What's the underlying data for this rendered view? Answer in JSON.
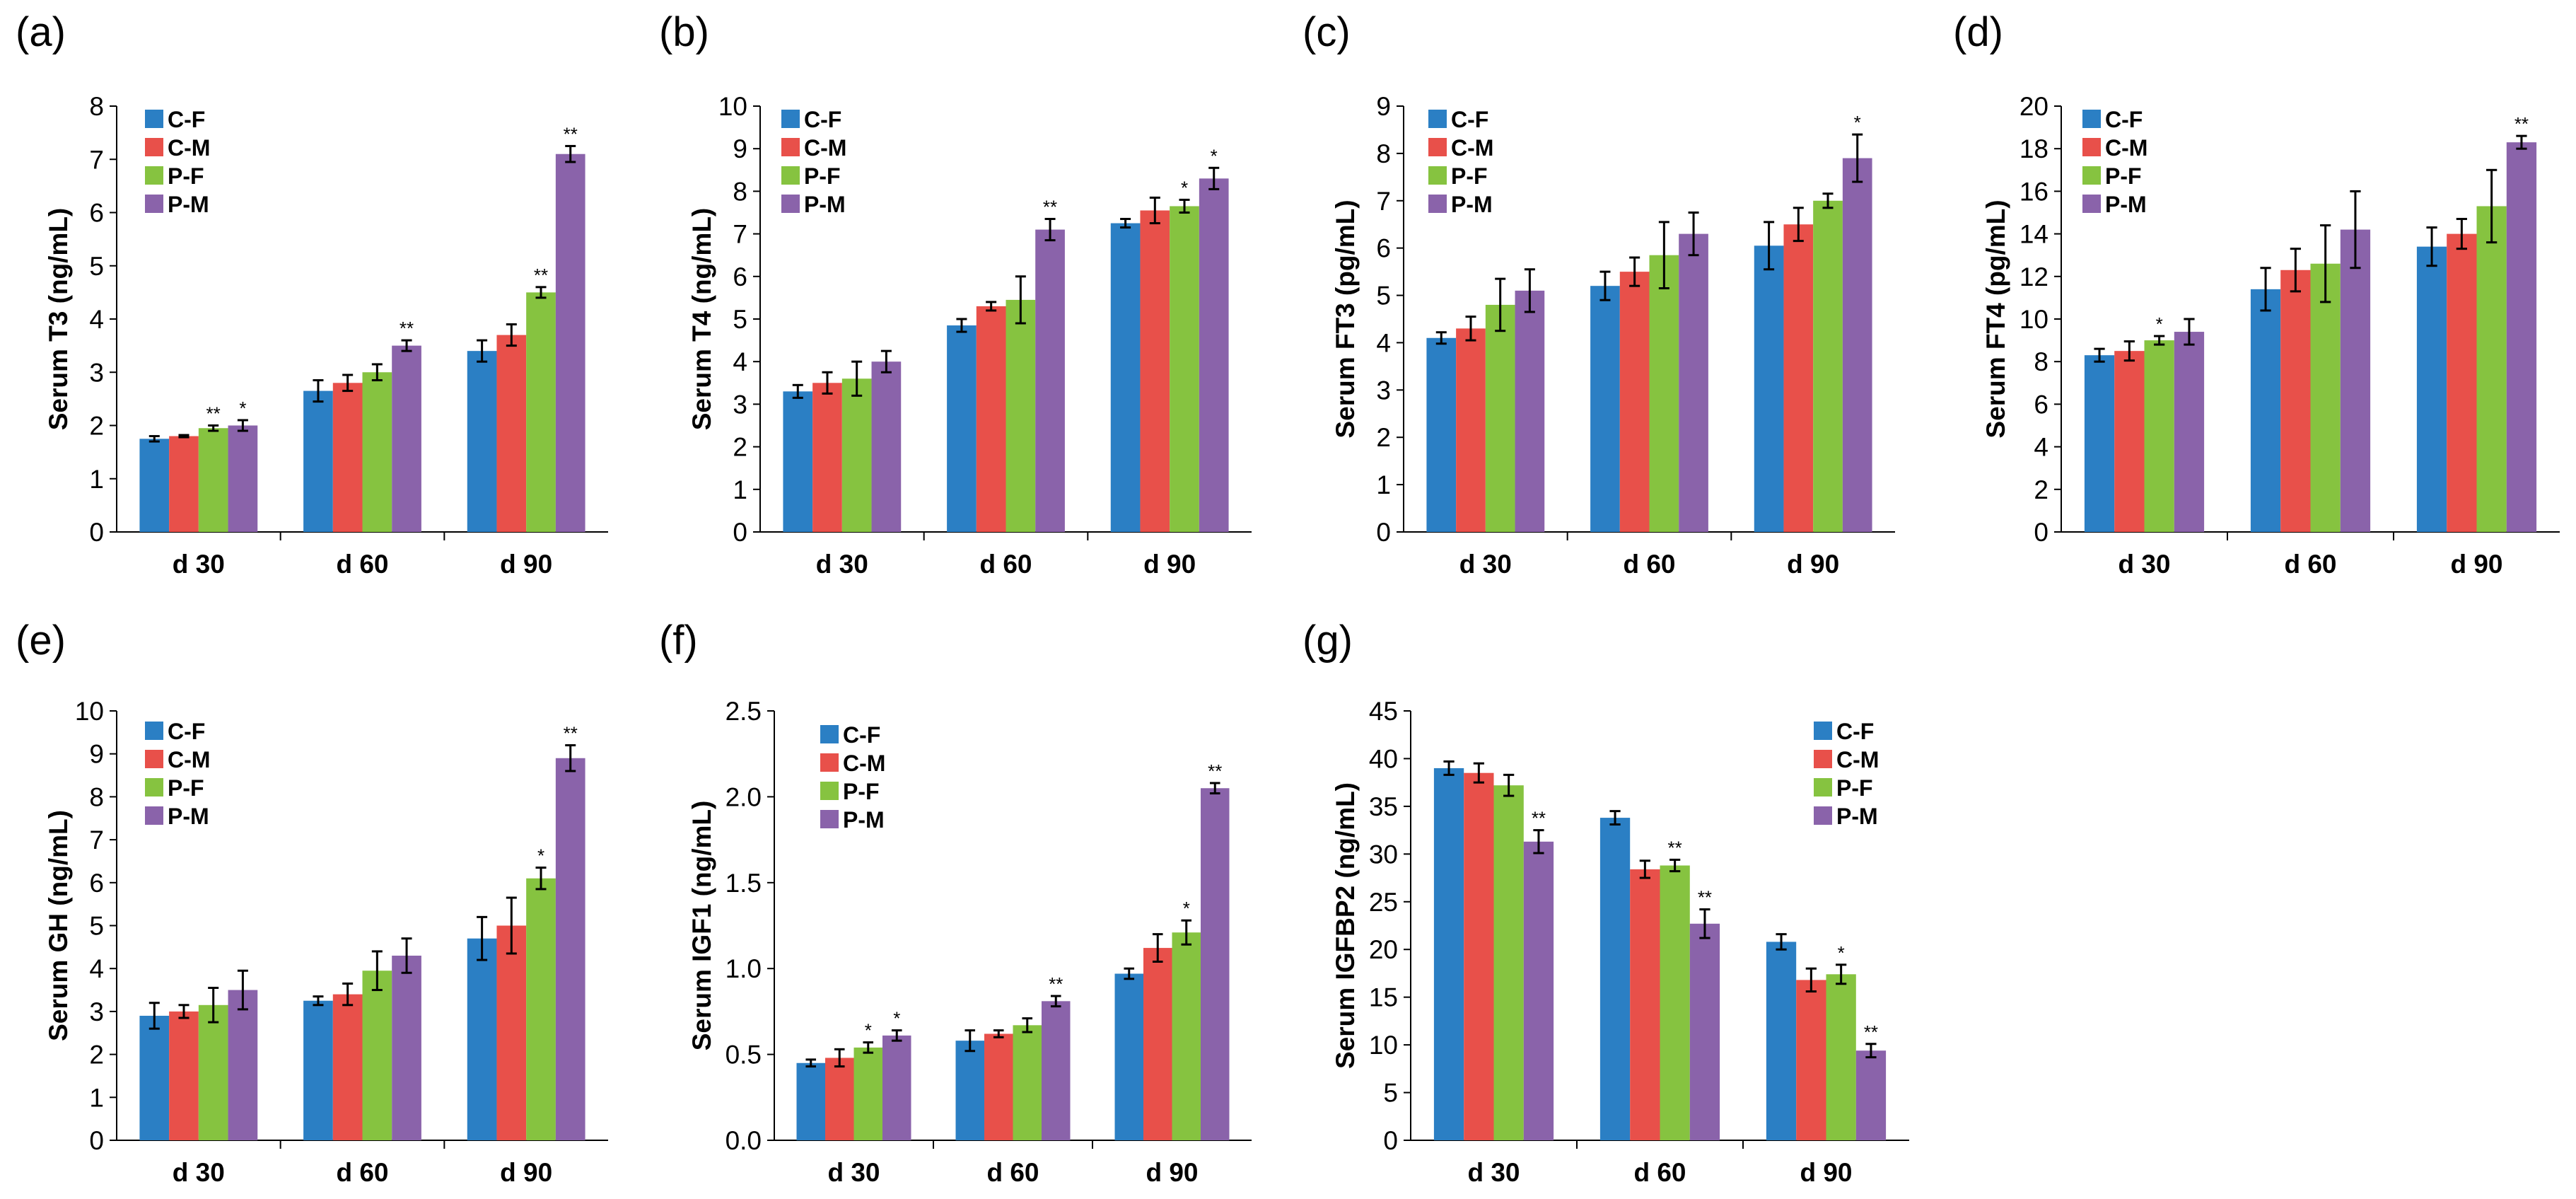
{
  "colors": {
    "C-F": "#2b7fc4",
    "C-M": "#e8504a",
    "P-F": "#86c340",
    "P-M": "#8a63aa"
  },
  "chart_data": [
    {
      "id": "a",
      "panel_label": "(a)",
      "type": "bar",
      "ylabel": "Serum T3 (ng/mL)",
      "ylim": [
        0,
        8
      ],
      "yticks": [
        "0",
        "1",
        "2",
        "3",
        "4",
        "5",
        "6",
        "7",
        "8"
      ],
      "categories": [
        "d 30",
        "d 60",
        "d 90"
      ],
      "legend": [
        "C-F",
        "C-M",
        "P-F",
        "P-M"
      ],
      "series": [
        {
          "name": "C-F",
          "values": [
            1.75,
            2.65,
            3.4
          ],
          "errors": [
            0.05,
            0.2,
            0.2
          ],
          "sig": [
            "",
            "",
            ""
          ]
        },
        {
          "name": "C-M",
          "values": [
            1.8,
            2.8,
            3.7
          ],
          "errors": [
            0.02,
            0.15,
            0.2
          ],
          "sig": [
            "",
            "",
            ""
          ]
        },
        {
          "name": "P-F",
          "values": [
            1.95,
            3.0,
            4.5
          ],
          "errors": [
            0.05,
            0.15,
            0.1
          ],
          "sig": [
            "**",
            "",
            "**"
          ]
        },
        {
          "name": "P-M",
          "values": [
            2.0,
            3.5,
            7.1
          ],
          "errors": [
            0.1,
            0.1,
            0.15
          ],
          "sig": [
            "*",
            "**",
            "**"
          ]
        }
      ]
    },
    {
      "id": "b",
      "panel_label": "(b)",
      "type": "bar",
      "ylabel": "Serum T4 (ng/mL)",
      "ylim": [
        0,
        10
      ],
      "yticks": [
        "0",
        "1",
        "2",
        "3",
        "4",
        "5",
        "6",
        "7",
        "8",
        "9",
        "10"
      ],
      "categories": [
        "d 30",
        "d 60",
        "d 90"
      ],
      "legend": [
        "C-F",
        "C-M",
        "P-F",
        "P-M"
      ],
      "series": [
        {
          "name": "C-F",
          "values": [
            3.3,
            4.85,
            7.25
          ],
          "errors": [
            0.15,
            0.15,
            0.1
          ],
          "sig": [
            "",
            "",
            ""
          ]
        },
        {
          "name": "C-M",
          "values": [
            3.5,
            5.3,
            7.55
          ],
          "errors": [
            0.25,
            0.1,
            0.3
          ],
          "sig": [
            "",
            "",
            ""
          ]
        },
        {
          "name": "P-F",
          "values": [
            3.6,
            5.45,
            7.65
          ],
          "errors": [
            0.4,
            0.55,
            0.15
          ],
          "sig": [
            "",
            "",
            "*"
          ]
        },
        {
          "name": "P-M",
          "values": [
            4.0,
            7.1,
            8.3
          ],
          "errors": [
            0.25,
            0.25,
            0.25
          ],
          "sig": [
            "",
            "**",
            "*"
          ]
        }
      ]
    },
    {
      "id": "c",
      "panel_label": "(c)",
      "type": "bar",
      "ylabel": "Serum FT3 (pg/mL)",
      "ylim": [
        0,
        9
      ],
      "yticks": [
        "0",
        "1",
        "2",
        "3",
        "4",
        "5",
        "6",
        "7",
        "8",
        "9"
      ],
      "categories": [
        "d 30",
        "d 60",
        "d 90"
      ],
      "legend": [
        "C-F",
        "C-M",
        "P-F",
        "P-M"
      ],
      "series": [
        {
          "name": "C-F",
          "values": [
            4.1,
            5.2,
            6.05
          ],
          "errors": [
            0.12,
            0.3,
            0.5
          ],
          "sig": [
            "",
            "",
            ""
          ]
        },
        {
          "name": "C-M",
          "values": [
            4.3,
            5.5,
            6.5
          ],
          "errors": [
            0.25,
            0.3,
            0.35
          ],
          "sig": [
            "",
            "",
            ""
          ]
        },
        {
          "name": "P-F",
          "values": [
            4.8,
            5.85,
            7.0
          ],
          "errors": [
            0.55,
            0.7,
            0.15
          ],
          "sig": [
            "",
            "",
            ""
          ]
        },
        {
          "name": "P-M",
          "values": [
            5.1,
            6.3,
            7.9
          ],
          "errors": [
            0.45,
            0.45,
            0.5
          ],
          "sig": [
            "",
            "",
            "*"
          ]
        }
      ]
    },
    {
      "id": "d",
      "panel_label": "(d)",
      "type": "bar",
      "ylabel": "Serum FT4 (pg/mL)",
      "ylim": [
        0,
        20
      ],
      "yticks": [
        "0",
        "2",
        "4",
        "6",
        "8",
        "10",
        "12",
        "14",
        "16",
        "18",
        "20"
      ],
      "categories": [
        "d 30",
        "d 60",
        "d 90"
      ],
      "legend": [
        "C-F",
        "C-M",
        "P-F",
        "P-M"
      ],
      "series": [
        {
          "name": "C-F",
          "values": [
            8.3,
            11.4,
            13.4
          ],
          "errors": [
            0.3,
            1.0,
            0.9
          ],
          "sig": [
            "",
            "",
            ""
          ]
        },
        {
          "name": "C-M",
          "values": [
            8.5,
            12.3,
            14.0
          ],
          "errors": [
            0.45,
            1.0,
            0.7
          ],
          "sig": [
            "",
            "",
            ""
          ]
        },
        {
          "name": "P-F",
          "values": [
            9.0,
            12.6,
            15.3
          ],
          "errors": [
            0.2,
            1.8,
            1.7
          ],
          "sig": [
            "*",
            "",
            ""
          ]
        },
        {
          "name": "P-M",
          "values": [
            9.4,
            14.2,
            18.3
          ],
          "errors": [
            0.6,
            1.8,
            0.3
          ],
          "sig": [
            "",
            "",
            "**"
          ]
        }
      ]
    },
    {
      "id": "e",
      "panel_label": "(e)",
      "type": "bar",
      "ylabel": "Serum GH (ng/mL)",
      "ylim": [
        0,
        10
      ],
      "yticks": [
        "0",
        "1",
        "2",
        "3",
        "4",
        "5",
        "6",
        "7",
        "8",
        "9",
        "10"
      ],
      "categories": [
        "d 30",
        "d 60",
        "d 90"
      ],
      "legend": [
        "C-F",
        "C-M",
        "P-F",
        "P-M"
      ],
      "series": [
        {
          "name": "C-F",
          "values": [
            2.9,
            3.25,
            4.7
          ],
          "errors": [
            0.3,
            0.1,
            0.5
          ],
          "sig": [
            "",
            "",
            ""
          ]
        },
        {
          "name": "C-M",
          "values": [
            3.0,
            3.4,
            5.0
          ],
          "errors": [
            0.15,
            0.25,
            0.65
          ],
          "sig": [
            "",
            "",
            ""
          ]
        },
        {
          "name": "P-F",
          "values": [
            3.15,
            3.95,
            6.1
          ],
          "errors": [
            0.4,
            0.45,
            0.25
          ],
          "sig": [
            "",
            "",
            "*"
          ]
        },
        {
          "name": "P-M",
          "values": [
            3.5,
            4.3,
            8.9
          ],
          "errors": [
            0.45,
            0.4,
            0.3
          ],
          "sig": [
            "",
            "",
            "**"
          ]
        }
      ]
    },
    {
      "id": "f",
      "panel_label": "(f)",
      "type": "bar",
      "ylabel": "Serum IGF1 (ng/mL)",
      "ylim": [
        0,
        2.5
      ],
      "yticks": [
        "0.0",
        "0.5",
        "1.0",
        "1.5",
        "2.0",
        "2.5"
      ],
      "categories": [
        "d 30",
        "d 60",
        "d 90"
      ],
      "legend": [
        "C-F",
        "C-M",
        "P-F",
        "P-M"
      ],
      "series": [
        {
          "name": "C-F",
          "values": [
            0.45,
            0.58,
            0.97
          ],
          "errors": [
            0.02,
            0.06,
            0.03
          ],
          "sig": [
            "",
            "",
            ""
          ]
        },
        {
          "name": "C-M",
          "values": [
            0.48,
            0.62,
            1.12
          ],
          "errors": [
            0.05,
            0.02,
            0.08
          ],
          "sig": [
            "",
            "",
            ""
          ]
        },
        {
          "name": "P-F",
          "values": [
            0.54,
            0.67,
            1.21
          ],
          "errors": [
            0.03,
            0.04,
            0.07
          ],
          "sig": [
            "*",
            "",
            "*"
          ]
        },
        {
          "name": "P-M",
          "values": [
            0.61,
            0.81,
            2.05
          ],
          "errors": [
            0.03,
            0.03,
            0.03
          ],
          "sig": [
            "*",
            "**",
            "**"
          ]
        }
      ]
    },
    {
      "id": "g",
      "panel_label": "(g)",
      "type": "bar",
      "ylabel": "Serum IGFBP2 (ng/mL)",
      "ylim": [
        0,
        45
      ],
      "yticks": [
        "0",
        "5",
        "10",
        "15",
        "20",
        "25",
        "30",
        "35",
        "40",
        "45"
      ],
      "categories": [
        "d 30",
        "d 60",
        "d 90"
      ],
      "legend": [
        "C-F",
        "C-M",
        "P-F",
        "P-M"
      ],
      "series": [
        {
          "name": "C-F",
          "values": [
            39.0,
            33.8,
            20.8
          ],
          "errors": [
            0.7,
            0.7,
            0.8
          ],
          "sig": [
            "",
            "",
            ""
          ]
        },
        {
          "name": "C-M",
          "values": [
            38.5,
            28.4,
            16.8
          ],
          "errors": [
            1.0,
            0.9,
            1.2
          ],
          "sig": [
            "",
            "",
            ""
          ]
        },
        {
          "name": "P-F",
          "values": [
            37.2,
            28.8,
            17.4
          ],
          "errors": [
            1.1,
            0.6,
            1.0
          ],
          "sig": [
            "",
            "**",
            "*"
          ]
        },
        {
          "name": "P-M",
          "values": [
            31.3,
            22.7,
            9.4
          ],
          "errors": [
            1.2,
            1.5,
            0.7
          ],
          "sig": [
            "**",
            "**",
            "**"
          ]
        }
      ]
    }
  ]
}
